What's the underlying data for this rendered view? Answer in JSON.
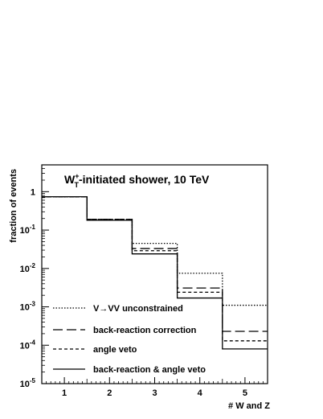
{
  "chart_data": {
    "type": "line",
    "title_main": "W",
    "title_sup": "+",
    "title_sub": "T",
    "title_rest": "-initiated shower, 10 TeV",
    "xlabel": "# W and Z",
    "ylabel": "fraction of events",
    "xlim": [
      0.5,
      5.5
    ],
    "ylim": [
      1e-05,
      5
    ],
    "yscale": "log",
    "grid": false,
    "legend_position": "bottom-left",
    "x_ticks": [
      {
        "value": 1,
        "label": "1"
      },
      {
        "value": 2,
        "label": "2"
      },
      {
        "value": 3,
        "label": "3"
      },
      {
        "value": 4,
        "label": "4"
      },
      {
        "value": 5,
        "label": "5"
      }
    ],
    "y_ticks": [
      {
        "exp": 0,
        "base": "1",
        "sup": ""
      },
      {
        "exp": -1,
        "base": "10",
        "sup": "-1"
      },
      {
        "exp": -2,
        "base": "10",
        "sup": "-2"
      },
      {
        "exp": -3,
        "base": "10",
        "sup": "-3"
      },
      {
        "exp": -4,
        "base": "10",
        "sup": "-4"
      },
      {
        "exp": -5,
        "base": "10",
        "sup": "-5"
      }
    ],
    "bin_edges": [
      0.5,
      1.5,
      2.5,
      3.5,
      4.5,
      5.5
    ],
    "series": [
      {
        "name": "V→VV unconstrained",
        "dash": "dotted",
        "values": [
          0.74,
          0.19,
          0.045,
          0.0075,
          0.0011
        ]
      },
      {
        "name": "back-reaction correction",
        "dash": "longdash",
        "values": [
          0.74,
          0.19,
          0.033,
          0.0031,
          0.00023
        ]
      },
      {
        "name": "angle veto",
        "dash": "shortdash",
        "values": [
          0.74,
          0.19,
          0.029,
          0.0024,
          0.00013
        ]
      },
      {
        "name": "back-reaction & angle veto",
        "dash": "solid",
        "values": [
          0.74,
          0.18,
          0.024,
          0.0017,
          8e-05
        ]
      }
    ]
  }
}
